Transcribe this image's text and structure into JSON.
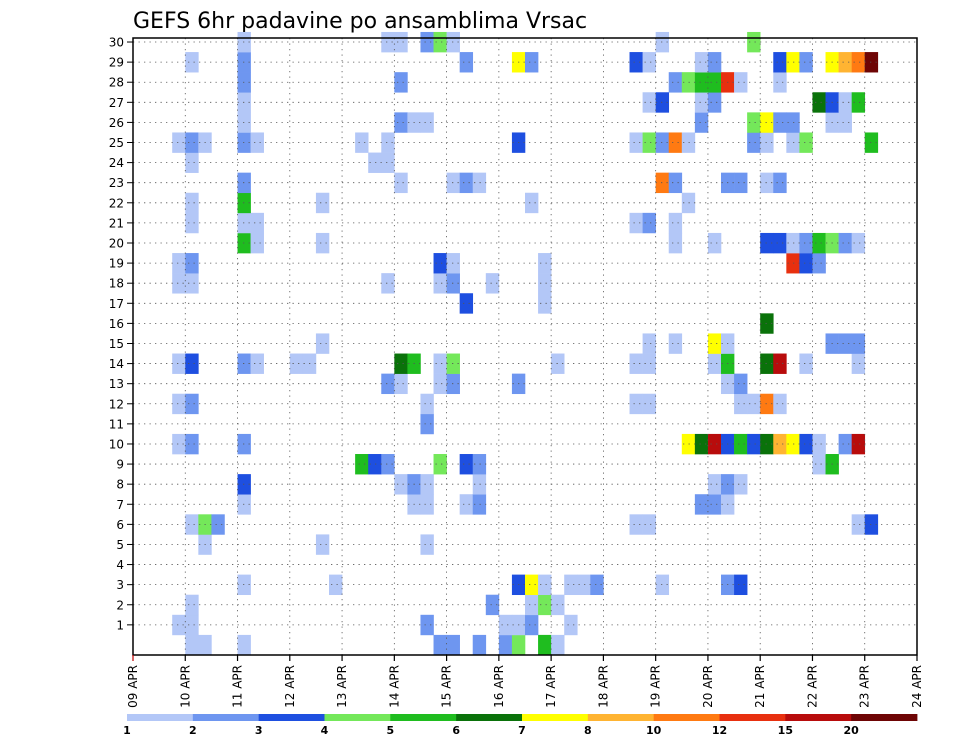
{
  "chart_data": {
    "type": "heatmap",
    "title": "GEFS 6hr padavine po ansamblima Vrsac",
    "y_ticks": [
      1,
      2,
      3,
      4,
      5,
      6,
      7,
      8,
      9,
      10,
      11,
      12,
      13,
      14,
      15,
      16,
      17,
      18,
      19,
      20,
      21,
      22,
      23,
      24,
      25,
      26,
      27,
      28,
      29,
      30
    ],
    "x_ticks": [
      "09 APR",
      "10 APR",
      "11 APR",
      "12 APR",
      "13 APR",
      "14 APR",
      "15 APR",
      "16 APR",
      "17 APR",
      "18 APR",
      "19 APR",
      "20 APR",
      "21 APR",
      "22 APR",
      "23 APR",
      "24 APR"
    ],
    "x_steps_per_day": 4,
    "x_first_step_day_offset": 0.75,
    "grid": true,
    "legend_position": "bottom",
    "colorbar": {
      "labels": [
        "1",
        "2",
        "3",
        "4",
        "5",
        "6",
        "7",
        "8",
        "10",
        "12",
        "15",
        "20"
      ],
      "colors": [
        "#b3c7f7",
        "#6e96f0",
        "#1e4fe0",
        "#74e85a",
        "#1fbd1f",
        "#0a720a",
        "#ffff00",
        "#ffb432",
        "#ff7a12",
        "#e8300f",
        "#b80c0c",
        "#6e0505"
      ]
    },
    "cells": [
      [
        1,
        0,
        1
      ],
      [
        2,
        0,
        1
      ],
      [
        5,
        0,
        1
      ],
      [
        20,
        0,
        2
      ],
      [
        21,
        0,
        2
      ],
      [
        23,
        0,
        2
      ],
      [
        25,
        0,
        2
      ],
      [
        26,
        0,
        4
      ],
      [
        28,
        0,
        5
      ],
      [
        29,
        0,
        1
      ],
      [
        0,
        1,
        1
      ],
      [
        1,
        1,
        1
      ],
      [
        19,
        1,
        2
      ],
      [
        25,
        1,
        1
      ],
      [
        26,
        1,
        1
      ],
      [
        27,
        1,
        2
      ],
      [
        30,
        1,
        1
      ],
      [
        1,
        2,
        1
      ],
      [
        24,
        2,
        2
      ],
      [
        27,
        2,
        1
      ],
      [
        28,
        2,
        4
      ],
      [
        29,
        2,
        1
      ],
      [
        5,
        3,
        1
      ],
      [
        12,
        3,
        1
      ],
      [
        26,
        3,
        3
      ],
      [
        27,
        3,
        7
      ],
      [
        28,
        3,
        1
      ],
      [
        30,
        3,
        1
      ],
      [
        31,
        3,
        1
      ],
      [
        32,
        3,
        2
      ],
      [
        37,
        3,
        1
      ],
      [
        42,
        3,
        2
      ],
      [
        43,
        3,
        3
      ],
      [
        2,
        5,
        1
      ],
      [
        11,
        5,
        1
      ],
      [
        19,
        5,
        1
      ],
      [
        1,
        6,
        1
      ],
      [
        2,
        6,
        4
      ],
      [
        3,
        6,
        2
      ],
      [
        35,
        6,
        1
      ],
      [
        36,
        6,
        1
      ],
      [
        52,
        6,
        1
      ],
      [
        53,
        6,
        3
      ],
      [
        5,
        7,
        1
      ],
      [
        18,
        7,
        1
      ],
      [
        19,
        7,
        1
      ],
      [
        22,
        7,
        1
      ],
      [
        23,
        7,
        2
      ],
      [
        40,
        7,
        2
      ],
      [
        41,
        7,
        2
      ],
      [
        42,
        7,
        1
      ],
      [
        5,
        8,
        3
      ],
      [
        17,
        8,
        1
      ],
      [
        18,
        8,
        2
      ],
      [
        19,
        8,
        1
      ],
      [
        23,
        8,
        1
      ],
      [
        41,
        8,
        1
      ],
      [
        42,
        8,
        2
      ],
      [
        43,
        8,
        1
      ],
      [
        14,
        9,
        5
      ],
      [
        15,
        9,
        3
      ],
      [
        16,
        9,
        2
      ],
      [
        20,
        9,
        4
      ],
      [
        22,
        9,
        3
      ],
      [
        23,
        9,
        2
      ],
      [
        49,
        9,
        1
      ],
      [
        50,
        9,
        5
      ],
      [
        0,
        10,
        1
      ],
      [
        1,
        10,
        2
      ],
      [
        5,
        10,
        2
      ],
      [
        39,
        10,
        7
      ],
      [
        40,
        10,
        6
      ],
      [
        41,
        10,
        11
      ],
      [
        42,
        10,
        3
      ],
      [
        43,
        10,
        5
      ],
      [
        44,
        10,
        3
      ],
      [
        45,
        10,
        6
      ],
      [
        46,
        10,
        8
      ],
      [
        47,
        10,
        7
      ],
      [
        48,
        10,
        3
      ],
      [
        49,
        10,
        1
      ],
      [
        51,
        10,
        2
      ],
      [
        52,
        10,
        11
      ],
      [
        19,
        11,
        2
      ],
      [
        0,
        12,
        1
      ],
      [
        1,
        12,
        2
      ],
      [
        19,
        12,
        1
      ],
      [
        35,
        12,
        1
      ],
      [
        36,
        12,
        1
      ],
      [
        43,
        12,
        1
      ],
      [
        44,
        12,
        1
      ],
      [
        45,
        12,
        9
      ],
      [
        46,
        12,
        1
      ],
      [
        16,
        13,
        2
      ],
      [
        17,
        13,
        1
      ],
      [
        20,
        13,
        1
      ],
      [
        21,
        13,
        2
      ],
      [
        26,
        13,
        2
      ],
      [
        42,
        13,
        1
      ],
      [
        43,
        13,
        2
      ],
      [
        0,
        14,
        1
      ],
      [
        1,
        14,
        3
      ],
      [
        5,
        14,
        2
      ],
      [
        6,
        14,
        1
      ],
      [
        9,
        14,
        1
      ],
      [
        10,
        14,
        1
      ],
      [
        17,
        14,
        6
      ],
      [
        18,
        14,
        5
      ],
      [
        20,
        14,
        1
      ],
      [
        21,
        14,
        4
      ],
      [
        29,
        14,
        1
      ],
      [
        35,
        14,
        1
      ],
      [
        36,
        14,
        1
      ],
      [
        41,
        14,
        1
      ],
      [
        42,
        14,
        5
      ],
      [
        45,
        14,
        6
      ],
      [
        46,
        14,
        11
      ],
      [
        48,
        14,
        1
      ],
      [
        52,
        14,
        1
      ],
      [
        11,
        15,
        1
      ],
      [
        36,
        15,
        1
      ],
      [
        38,
        15,
        1
      ],
      [
        41,
        15,
        7
      ],
      [
        42,
        15,
        1
      ],
      [
        50,
        15,
        2
      ],
      [
        51,
        15,
        2
      ],
      [
        52,
        15,
        2
      ],
      [
        45,
        16,
        6
      ],
      [
        22,
        17,
        3
      ],
      [
        28,
        17,
        1
      ],
      [
        0,
        18,
        1
      ],
      [
        1,
        18,
        1
      ],
      [
        16,
        18,
        1
      ],
      [
        20,
        18,
        1
      ],
      [
        21,
        18,
        2
      ],
      [
        24,
        18,
        1
      ],
      [
        28,
        18,
        1
      ],
      [
        0,
        19,
        1
      ],
      [
        1,
        19,
        2
      ],
      [
        20,
        19,
        3
      ],
      [
        21,
        19,
        1
      ],
      [
        28,
        19,
        1
      ],
      [
        47,
        19,
        10
      ],
      [
        48,
        19,
        3
      ],
      [
        49,
        19,
        2
      ],
      [
        5,
        20,
        5
      ],
      [
        6,
        20,
        1
      ],
      [
        11,
        20,
        1
      ],
      [
        38,
        20,
        1
      ],
      [
        41,
        20,
        1
      ],
      [
        45,
        20,
        3
      ],
      [
        46,
        20,
        3
      ],
      [
        47,
        20,
        1
      ],
      [
        48,
        20,
        2
      ],
      [
        49,
        20,
        5
      ],
      [
        50,
        20,
        4
      ],
      [
        51,
        20,
        2
      ],
      [
        52,
        20,
        1
      ],
      [
        1,
        21,
        1
      ],
      [
        5,
        21,
        1
      ],
      [
        6,
        21,
        1
      ],
      [
        35,
        21,
        1
      ],
      [
        36,
        21,
        2
      ],
      [
        38,
        21,
        1
      ],
      [
        1,
        22,
        1
      ],
      [
        5,
        22,
        5
      ],
      [
        11,
        22,
        1
      ],
      [
        27,
        22,
        1
      ],
      [
        39,
        22,
        1
      ],
      [
        5,
        23,
        2
      ],
      [
        17,
        23,
        1
      ],
      [
        21,
        23,
        1
      ],
      [
        22,
        23,
        2
      ],
      [
        23,
        23,
        1
      ],
      [
        37,
        23,
        9
      ],
      [
        38,
        23,
        2
      ],
      [
        42,
        23,
        2
      ],
      [
        43,
        23,
        2
      ],
      [
        45,
        23,
        1
      ],
      [
        46,
        23,
        2
      ],
      [
        1,
        24,
        1
      ],
      [
        15,
        24,
        1
      ],
      [
        16,
        24,
        1
      ],
      [
        0,
        25,
        1
      ],
      [
        1,
        25,
        2
      ],
      [
        2,
        25,
        1
      ],
      [
        5,
        25,
        2
      ],
      [
        6,
        25,
        1
      ],
      [
        14,
        25,
        1
      ],
      [
        16,
        25,
        1
      ],
      [
        26,
        25,
        3
      ],
      [
        35,
        25,
        1
      ],
      [
        36,
        25,
        4
      ],
      [
        37,
        25,
        2
      ],
      [
        38,
        25,
        9
      ],
      [
        39,
        25,
        1
      ],
      [
        44,
        25,
        2
      ],
      [
        45,
        25,
        1
      ],
      [
        47,
        25,
        1
      ],
      [
        48,
        25,
        4
      ],
      [
        53,
        25,
        5
      ],
      [
        5,
        26,
        1
      ],
      [
        17,
        26,
        2
      ],
      [
        18,
        26,
        1
      ],
      [
        19,
        26,
        1
      ],
      [
        40,
        26,
        2
      ],
      [
        44,
        26,
        4
      ],
      [
        45,
        26,
        7
      ],
      [
        46,
        26,
        2
      ],
      [
        47,
        26,
        2
      ],
      [
        50,
        26,
        1
      ],
      [
        51,
        26,
        1
      ],
      [
        5,
        27,
        1
      ],
      [
        36,
        27,
        1
      ],
      [
        37,
        27,
        3
      ],
      [
        40,
        27,
        1
      ],
      [
        41,
        27,
        2
      ],
      [
        49,
        27,
        6
      ],
      [
        50,
        27,
        3
      ],
      [
        51,
        27,
        1
      ],
      [
        52,
        27,
        5
      ],
      [
        5,
        28,
        2
      ],
      [
        17,
        28,
        2
      ],
      [
        38,
        28,
        2
      ],
      [
        39,
        28,
        4
      ],
      [
        40,
        28,
        5
      ],
      [
        41,
        28,
        5
      ],
      [
        42,
        28,
        10
      ],
      [
        43,
        28,
        1
      ],
      [
        46,
        28,
        1
      ],
      [
        1,
        29,
        1
      ],
      [
        5,
        29,
        2
      ],
      [
        22,
        29,
        2
      ],
      [
        26,
        29,
        7
      ],
      [
        27,
        29,
        2
      ],
      [
        35,
        29,
        3
      ],
      [
        36,
        29,
        1
      ],
      [
        40,
        29,
        1
      ],
      [
        41,
        29,
        2
      ],
      [
        46,
        29,
        3
      ],
      [
        47,
        29,
        7
      ],
      [
        48,
        29,
        2
      ],
      [
        50,
        29,
        7
      ],
      [
        51,
        29,
        8
      ],
      [
        52,
        29,
        9
      ],
      [
        53,
        29,
        12
      ],
      [
        5,
        30,
        1
      ],
      [
        16,
        30,
        1
      ],
      [
        17,
        30,
        1
      ],
      [
        19,
        30,
        2
      ],
      [
        20,
        30,
        4
      ],
      [
        21,
        30,
        1
      ],
      [
        37,
        30,
        1
      ],
      [
        44,
        30,
        4
      ]
    ]
  }
}
